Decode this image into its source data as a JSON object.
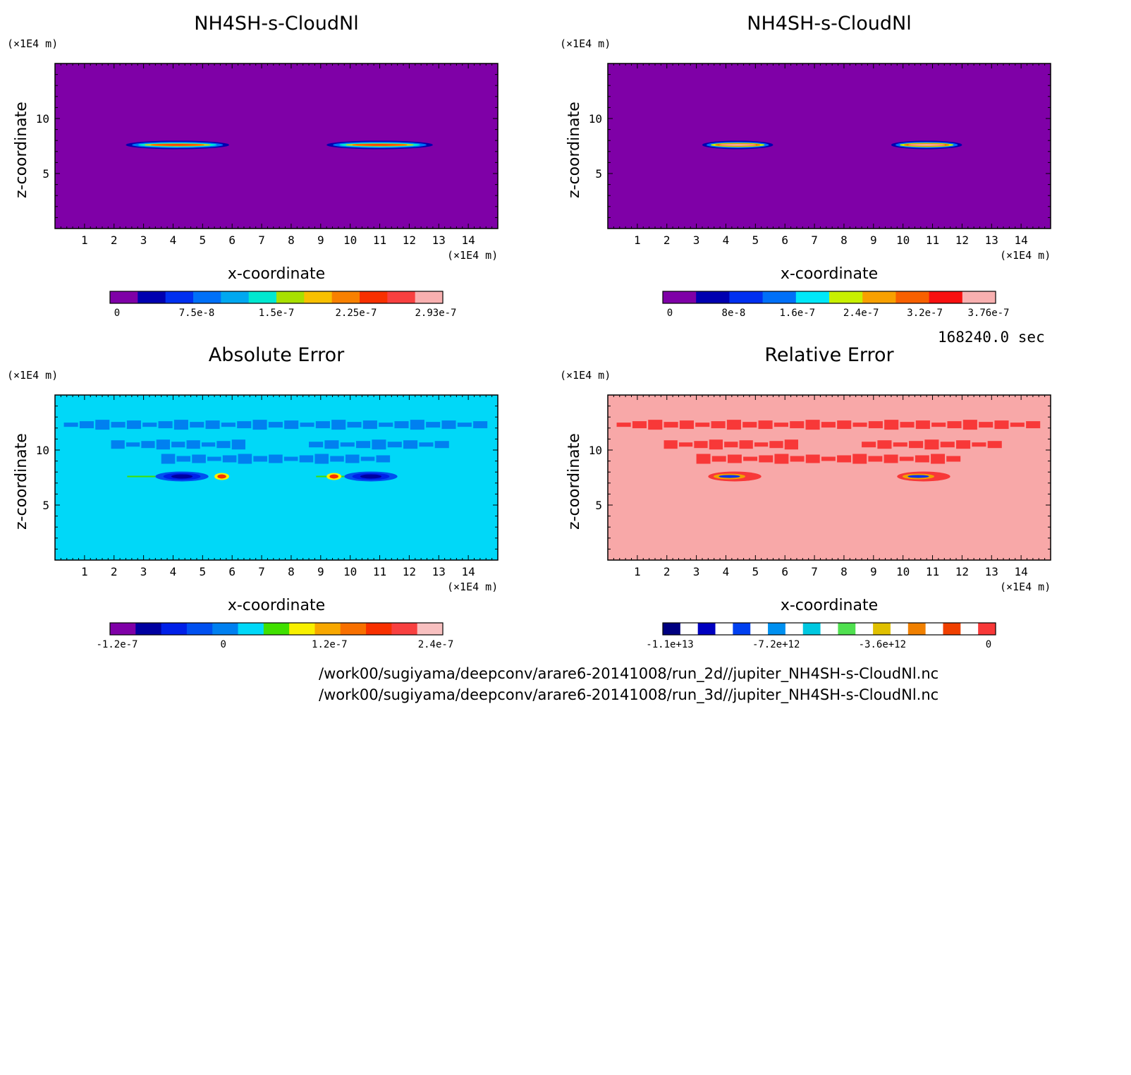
{
  "chart_data": [
    {
      "type": "heatmap",
      "title": "NH4SH-s-CloudNl",
      "xlabel": "x-coordinate",
      "ylabel": "z-coordinate",
      "x_unit": "(×1E4 m)",
      "y_unit": "(×1E4 m)",
      "xlim": [
        0,
        15
      ],
      "ylim": [
        0,
        15
      ],
      "x_ticks": [
        "1",
        "2",
        "3",
        "4",
        "5",
        "6",
        "7",
        "8",
        "9",
        "10",
        "11",
        "12",
        "13",
        "14"
      ],
      "y_ticks": [
        "5",
        "10"
      ],
      "background_color": "#7f00a7",
      "features": [
        {
          "kind": "cloud_layer",
          "x_range": [
            2.4,
            5.9
          ],
          "z": 7.6
        },
        {
          "kind": "cloud_layer",
          "x_range": [
            9.2,
            12.8
          ],
          "z": 7.6
        }
      ],
      "colorbar": {
        "colors": [
          "#7f00a7",
          "#0000b0",
          "#0030f0",
          "#0070f8",
          "#00a8f0",
          "#00e8d0",
          "#a8e000",
          "#f8c000",
          "#f88000",
          "#f83000",
          "#f84040",
          "#f8b0b0"
        ],
        "tick_labels": [
          "0",
          "7.5e-8",
          "1.5e-7",
          "2.25e-7",
          "2.93e-7"
        ]
      }
    },
    {
      "type": "heatmap",
      "title": "NH4SH-s-CloudNl",
      "xlabel": "x-coordinate",
      "ylabel": "z-coordinate",
      "x_unit": "(×1E4 m)",
      "y_unit": "(×1E4 m)",
      "xlim": [
        0,
        15
      ],
      "ylim": [
        0,
        15
      ],
      "x_ticks": [
        "1",
        "2",
        "3",
        "4",
        "5",
        "6",
        "7",
        "8",
        "9",
        "10",
        "11",
        "12",
        "13",
        "14"
      ],
      "y_ticks": [
        "5",
        "10"
      ],
      "background_color": "#7f00a7",
      "features": [
        {
          "kind": "cloud_layer",
          "x_range": [
            3.2,
            5.6
          ],
          "z": 7.6
        },
        {
          "kind": "cloud_layer",
          "x_range": [
            9.6,
            12.0
          ],
          "z": 7.6
        }
      ],
      "colorbar": {
        "colors": [
          "#7f00a7",
          "#0000b0",
          "#0030f0",
          "#0070f8",
          "#00e8f8",
          "#c8f000",
          "#f8a000",
          "#f86000",
          "#f81010",
          "#f8b0b0"
        ],
        "tick_labels": [
          "0",
          "8e-8",
          "1.6e-7",
          "2.4e-7",
          "3.2e-7",
          "3.76e-7"
        ]
      }
    },
    {
      "type": "heatmap",
      "title": "Absolute Error",
      "xlabel": "x-coordinate",
      "ylabel": "z-coordinate",
      "x_unit": "(×1E4 m)",
      "y_unit": "(×1E4 m)",
      "xlim": [
        0,
        15
      ],
      "ylim": [
        0,
        15
      ],
      "x_ticks": [
        "1",
        "2",
        "3",
        "4",
        "5",
        "6",
        "7",
        "8",
        "9",
        "10",
        "11",
        "12",
        "13",
        "14"
      ],
      "y_ticks": [
        "5",
        "10"
      ],
      "background_color": "#00d8f8",
      "features": [
        {
          "kind": "band",
          "x_range": [
            0.3,
            14.7
          ],
          "z": 12.3
        },
        {
          "kind": "band",
          "x_range": [
            1.9,
            6.5
          ],
          "z": 10.5
        },
        {
          "kind": "band",
          "x_range": [
            8.6,
            13.4
          ],
          "z": 10.5
        },
        {
          "kind": "band",
          "x_range": [
            3.6,
            11.4
          ],
          "z": 9.2
        },
        {
          "kind": "minimum",
          "x_range": [
            3.4,
            5.2
          ],
          "z": 7.6
        },
        {
          "kind": "minimum",
          "x_range": [
            9.8,
            11.6
          ],
          "z": 7.6
        },
        {
          "kind": "maximum",
          "x_range": [
            5.4,
            5.9
          ],
          "z": 7.6
        },
        {
          "kind": "maximum",
          "x_range": [
            9.2,
            9.7
          ],
          "z": 7.6
        }
      ],
      "colorbar": {
        "colors": [
          "#7f00a7",
          "#0000a0",
          "#0020e8",
          "#0050f0",
          "#0080f0",
          "#00d8f8",
          "#40e000",
          "#f8f000",
          "#f8a800",
          "#f87000",
          "#f83000",
          "#f84040",
          "#f8c0c0"
        ],
        "tick_labels": [
          "-1.2e-7",
          "0",
          "1.2e-7",
          "2.4e-7"
        ]
      }
    },
    {
      "type": "heatmap",
      "title": "Relative Error",
      "xlabel": "x-coordinate",
      "ylabel": "z-coordinate",
      "x_unit": "(×1E4 m)",
      "y_unit": "(×1E4 m)",
      "xlim": [
        0,
        15
      ],
      "ylim": [
        0,
        15
      ],
      "x_ticks": [
        "1",
        "2",
        "3",
        "4",
        "5",
        "6",
        "7",
        "8",
        "9",
        "10",
        "11",
        "12",
        "13",
        "14"
      ],
      "y_ticks": [
        "5",
        "10"
      ],
      "background_color": "#f8a8a8",
      "features": [
        {
          "kind": "band",
          "x_range": [
            0.3,
            14.7
          ],
          "z": 12.3
        },
        {
          "kind": "band",
          "x_range": [
            1.9,
            6.5
          ],
          "z": 10.5
        },
        {
          "kind": "band",
          "x_range": [
            8.6,
            13.4
          ],
          "z": 10.5
        },
        {
          "kind": "band",
          "x_range": [
            3.0,
            12.0
          ],
          "z": 9.2
        },
        {
          "kind": "minimum",
          "x_range": [
            3.4,
            5.2
          ],
          "z": 7.6
        },
        {
          "kind": "minimum",
          "x_range": [
            9.8,
            11.6
          ],
          "z": 7.6
        }
      ],
      "colorbar": {
        "colors": [
          "#000080",
          "#ffffff",
          "#0000c0",
          "#ffffff",
          "#0040f0",
          "#ffffff",
          "#0090f0",
          "#ffffff",
          "#00c8e0",
          "#ffffff",
          "#50e050",
          "#ffffff",
          "#e0c000",
          "#ffffff",
          "#f08000",
          "#ffffff",
          "#f04000",
          "#ffffff",
          "#f83838"
        ],
        "tick_labels": [
          "-1.1e+13",
          "-7.2e+12",
          "-3.6e+12",
          "0"
        ]
      }
    }
  ],
  "time_label": "168240.0 sec",
  "file_paths": [
    "/work00/sugiyama/deepconv/arare6-20141008/run_2d//jupiter_NH4SH-s-CloudNl.nc",
    "/work00/sugiyama/deepconv/arare6-20141008/run_3d//jupiter_NH4SH-s-CloudNl.nc"
  ]
}
